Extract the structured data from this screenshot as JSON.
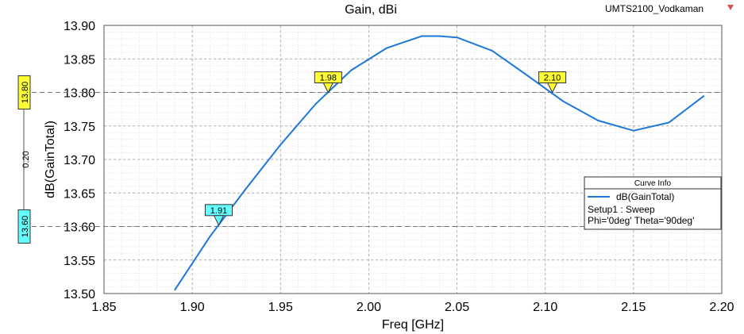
{
  "chart_data": {
    "type": "line",
    "title": "Gain, dBi",
    "design_name": "UMTS2100_Vodkaman",
    "xlabel": "Freq [GHz]",
    "ylabel": "dB(GainTotal)",
    "xlim": [
      1.85,
      2.2
    ],
    "ylim": [
      13.5,
      13.9
    ],
    "xticks": [
      "1.85",
      "1.90",
      "1.95",
      "2.00",
      "2.05",
      "2.10",
      "2.15",
      "2.20"
    ],
    "yticks": [
      "13.50",
      "13.55",
      "13.60",
      "13.65",
      "13.70",
      "13.75",
      "13.80",
      "13.85",
      "13.90"
    ],
    "grid": true,
    "series": [
      {
        "name": "dB(GainTotal)",
        "color": "#1e78d7",
        "x": [
          1.89,
          1.91,
          1.93,
          1.95,
          1.97,
          1.99,
          2.01,
          2.03,
          2.04,
          2.05,
          2.07,
          2.09,
          2.11,
          2.13,
          2.15,
          2.17,
          2.19
        ],
        "y": [
          13.505,
          13.585,
          13.655,
          13.722,
          13.783,
          13.833,
          13.866,
          13.884,
          13.884,
          13.882,
          13.862,
          13.825,
          13.787,
          13.758,
          13.743,
          13.755,
          13.795
        ]
      }
    ],
    "markers": [
      {
        "label": "1.91",
        "x": 1.915,
        "y": 13.602,
        "style": "cyan"
      },
      {
        "label": "1.98",
        "x": 1.977,
        "y": 13.8,
        "style": "yellow"
      },
      {
        "label": "2.10",
        "x": 2.104,
        "y": 13.8,
        "style": "yellow"
      }
    ],
    "y_markers": [
      {
        "label": "13.80",
        "value": 13.8,
        "color": "#ffff33"
      },
      {
        "label": "13.60",
        "value": 13.6,
        "color": "#66ffff"
      }
    ],
    "y_delta_label": "0.20",
    "legend": {
      "title": "Curve Info",
      "entry": "dB(GainTotal)",
      "lines": [
        "Setup1 : Sweep",
        "Phi='0deg' Theta='90deg'"
      ],
      "position": "right"
    }
  }
}
